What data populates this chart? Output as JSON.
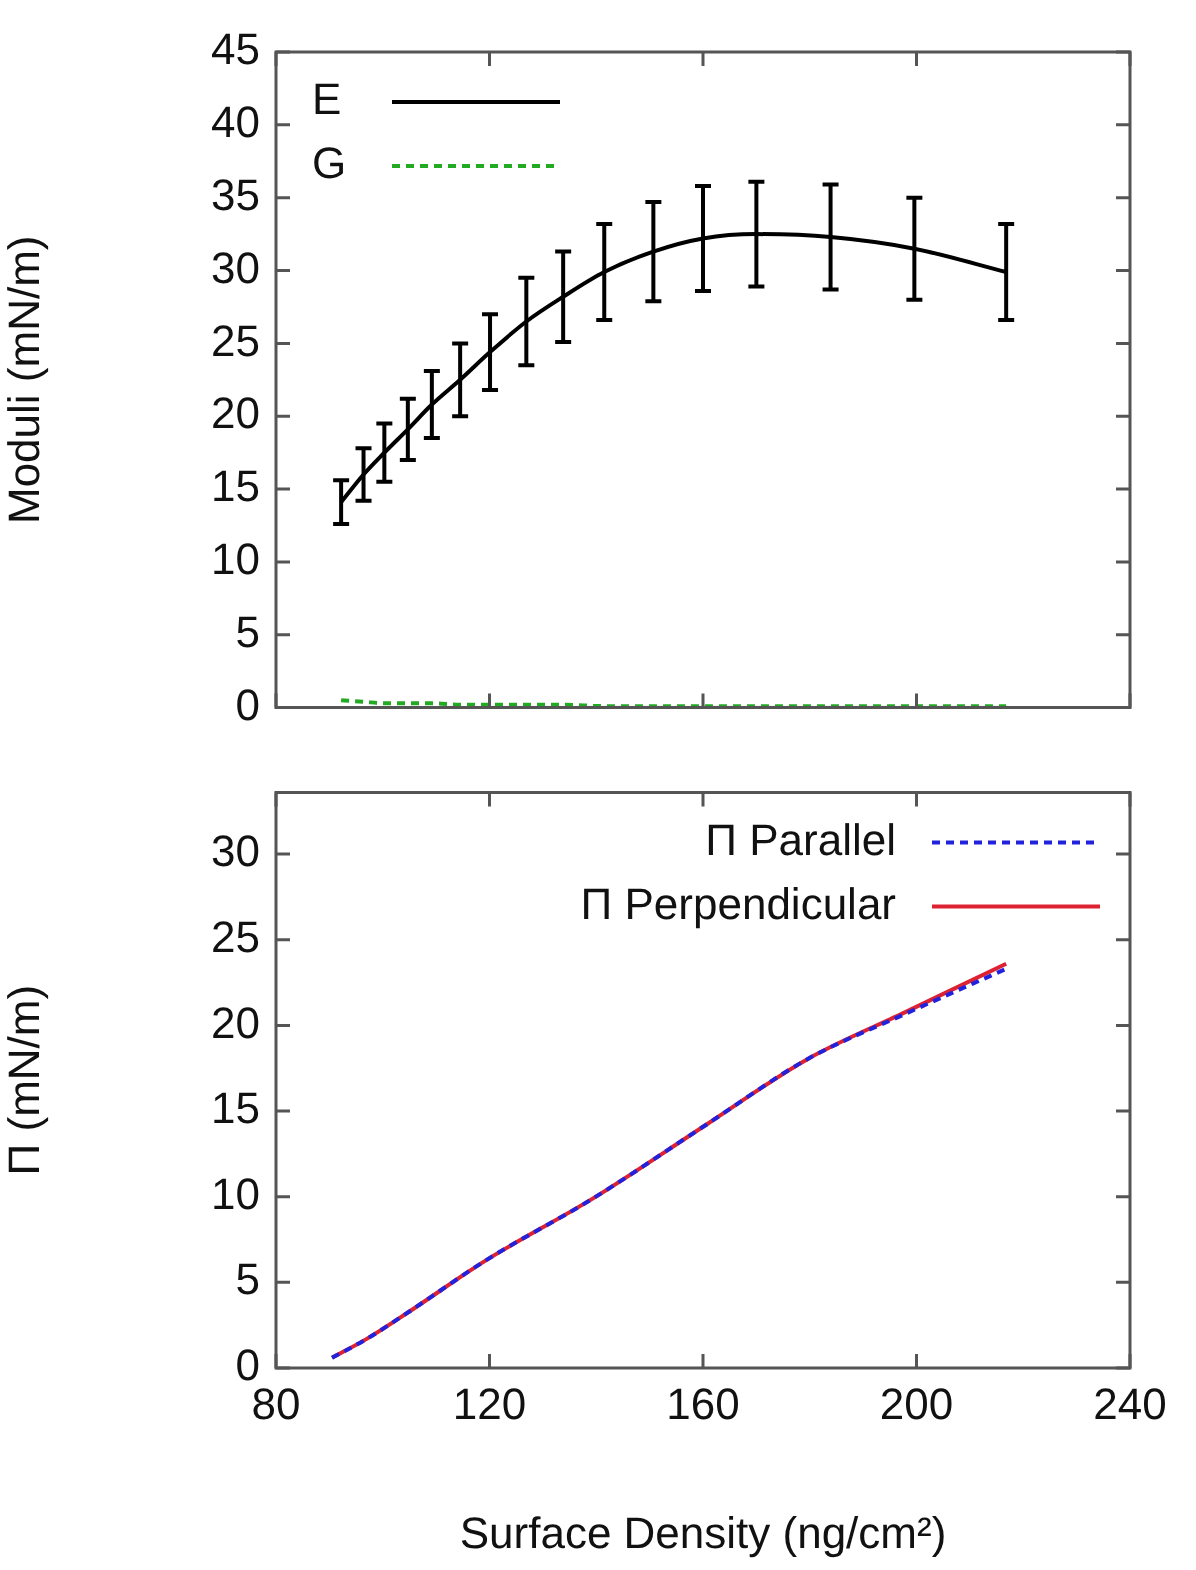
{
  "chart_data": [
    {
      "type": "line",
      "ylabel": "Moduli (mN/m)",
      "xlim": [
        80,
        240
      ],
      "xticks": [
        80,
        120,
        160,
        200,
        240
      ],
      "ylim": [
        0,
        45
      ],
      "yticks": [
        0,
        5,
        10,
        15,
        20,
        25,
        30,
        35,
        40,
        45
      ],
      "tick_labels": "y",
      "legend": "top left",
      "marker": "none",
      "grid": false,
      "x": [
        92.2,
        96.4,
        100.3,
        104.7,
        109.2,
        114.5,
        120.1,
        126.9,
        133.8,
        141.5,
        150.7,
        160,
        170,
        183.9,
        199.6,
        216.8
      ],
      "series": [
        {
          "name": "E",
          "color": "#000000",
          "line_style": "solid",
          "values": [
            14.1,
            16.0,
            17.5,
            19.1,
            20.8,
            22.5,
            24.4,
            26.5,
            28.2,
            29.9,
            31.3,
            32.2,
            32.5,
            32.3,
            31.5,
            29.9
          ],
          "errors": [
            1.5,
            1.8,
            2.0,
            2.1,
            2.3,
            2.5,
            2.6,
            3.0,
            3.1,
            3.3,
            3.4,
            3.6,
            3.6,
            3.6,
            3.5,
            3.3
          ]
        },
        {
          "name": "G",
          "color": "#22aa22",
          "line_style": "dashed",
          "values": [
            0.5,
            0.4,
            0.3,
            0.3,
            0.3,
            0.2,
            0.2,
            0.2,
            0.2,
            0.1,
            0.1,
            0.1,
            0.1,
            0.1,
            0.1,
            0.1
          ]
        }
      ]
    },
    {
      "type": "line",
      "xlabel": "Surface Density (ng/cm²)",
      "ylabel": "Π (mN/m)",
      "xlim": [
        80,
        240
      ],
      "xticks": [
        80,
        120,
        160,
        200,
        240
      ],
      "ylim": [
        0,
        33.6
      ],
      "yticks": [
        0,
        5,
        10,
        15,
        20,
        25,
        30
      ],
      "legend": "top right",
      "marker": "none",
      "grid": false,
      "x": [
        90.5,
        97,
        105,
        119.4,
        139.4,
        160.6,
        179.4,
        198.1,
        216.8
      ],
      "series": [
        {
          "name": "Π Parallel",
          "color": "#2222dd",
          "line_style": "dashed",
          "values": [
            0.6,
            1.7,
            3.3,
            6.3,
            9.9,
            14.2,
            18.0,
            20.7,
            23.3
          ]
        },
        {
          "name": "Π Perpendicular",
          "color": "#dd2233",
          "line_style": "solid",
          "values": [
            0.6,
            1.7,
            3.3,
            6.3,
            9.9,
            14.2,
            18.0,
            20.8,
            23.6
          ]
        }
      ]
    }
  ]
}
